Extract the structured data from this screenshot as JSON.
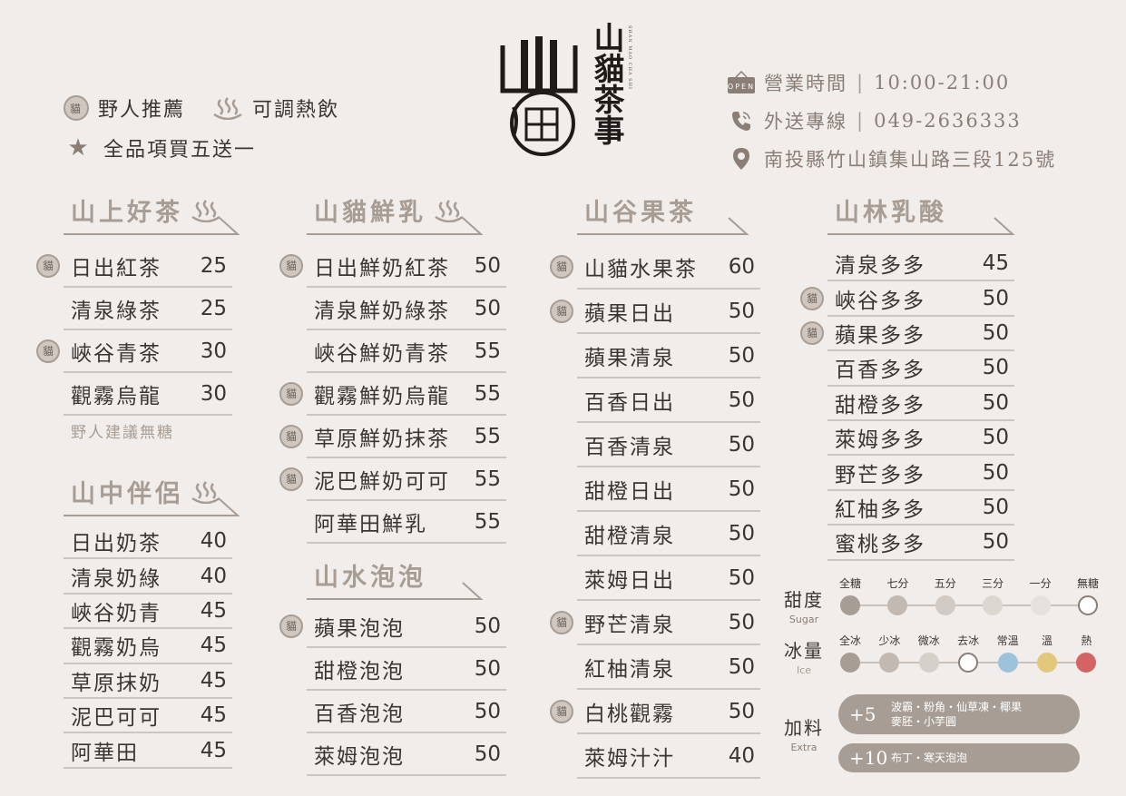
{
  "legend": {
    "recommend": "野人推薦",
    "hot": "可調熱飲",
    "promo": "全品項買五送一",
    "seal_char": "貓"
  },
  "logo": {
    "title": "山貓茶事",
    "seal_top": "山",
    "seal_bottom": "貓",
    "romanized": "SHAN MAO CHA SHI"
  },
  "info": {
    "hours_label": "營業時間",
    "hours_value": "10:00-21:00",
    "delivery_label": "外送專線",
    "delivery_value": "049-2636333",
    "address": "南投縣竹山鎮集山路三段125號",
    "open_sign": "OPEN"
  },
  "sections": {
    "mountain_tea": {
      "title": "山上好茶",
      "items": [
        {
          "name": "日出紅茶",
          "price": "25",
          "rec": true
        },
        {
          "name": "清泉綠茶",
          "price": "25",
          "rec": false
        },
        {
          "name": "峽谷青茶",
          "price": "30",
          "rec": true
        },
        {
          "name": "觀霧烏龍",
          "price": "30",
          "rec": false
        }
      ],
      "note": "野人建議無糖"
    },
    "companion": {
      "title": "山中伴侶",
      "items": [
        {
          "name": "日出奶茶",
          "price": "40"
        },
        {
          "name": "清泉奶綠",
          "price": "40"
        },
        {
          "name": "峽谷奶青",
          "price": "45"
        },
        {
          "name": "觀霧奶烏",
          "price": "45"
        },
        {
          "name": "草原抹奶",
          "price": "45"
        },
        {
          "name": "泥巴可可",
          "price": "45"
        },
        {
          "name": "阿華田",
          "price": "45"
        }
      ]
    },
    "fresh_milk": {
      "title": "山貓鮮乳",
      "items": [
        {
          "name": "日出鮮奶紅茶",
          "price": "50",
          "rec": true
        },
        {
          "name": "清泉鮮奶綠茶",
          "price": "50",
          "rec": false
        },
        {
          "name": "峽谷鮮奶青茶",
          "price": "55",
          "rec": false
        },
        {
          "name": "觀霧鮮奶烏龍",
          "price": "55",
          "rec": true
        },
        {
          "name": "草原鮮奶抹茶",
          "price": "55",
          "rec": true
        },
        {
          "name": "泥巴鮮奶可可",
          "price": "55",
          "rec": true
        },
        {
          "name": "阿華田鮮乳",
          "price": "55",
          "rec": false
        }
      ]
    },
    "bubbles": {
      "title": "山水泡泡",
      "items": [
        {
          "name": "蘋果泡泡",
          "price": "50",
          "rec": true
        },
        {
          "name": "甜橙泡泡",
          "price": "50",
          "rec": false
        },
        {
          "name": "百香泡泡",
          "price": "50",
          "rec": false
        },
        {
          "name": "萊姆泡泡",
          "price": "50",
          "rec": false
        }
      ]
    },
    "fruit_tea": {
      "title": "山谷果茶",
      "items": [
        {
          "name": "山貓水果茶",
          "price": "60",
          "rec": true
        },
        {
          "name": "蘋果日出",
          "price": "50",
          "rec": true
        },
        {
          "name": "蘋果清泉",
          "price": "50",
          "rec": false
        },
        {
          "name": "百香日出",
          "price": "50",
          "rec": false
        },
        {
          "name": "百香清泉",
          "price": "50",
          "rec": false
        },
        {
          "name": "甜橙日出",
          "price": "50",
          "rec": false
        },
        {
          "name": "甜橙清泉",
          "price": "50",
          "rec": false
        },
        {
          "name": "萊姆日出",
          "price": "50",
          "rec": false
        },
        {
          "name": "野芒清泉",
          "price": "50",
          "rec": true
        },
        {
          "name": "紅柚清泉",
          "price": "50",
          "rec": false
        },
        {
          "name": "白桃觀霧",
          "price": "50",
          "rec": true
        },
        {
          "name": "萊姆汁汁",
          "price": "40",
          "rec": false
        }
      ]
    },
    "yogurt": {
      "title": "山林乳酸",
      "items": [
        {
          "name": "清泉多多",
          "price": "45",
          "rec": false
        },
        {
          "name": "峽谷多多",
          "price": "50",
          "rec": true
        },
        {
          "name": "蘋果多多",
          "price": "50",
          "rec": true
        },
        {
          "name": "百香多多",
          "price": "50",
          "rec": false
        },
        {
          "name": "甜橙多多",
          "price": "50",
          "rec": false
        },
        {
          "name": "萊姆多多",
          "price": "50",
          "rec": false
        },
        {
          "name": "野芒多多",
          "price": "50",
          "rec": false
        },
        {
          "name": "紅柚多多",
          "price": "50",
          "rec": false
        },
        {
          "name": "蜜桃多多",
          "price": "50",
          "rec": false
        }
      ]
    }
  },
  "options": {
    "sugar": {
      "label": "甜度",
      "label_en": "Sugar",
      "levels": [
        {
          "name": "全糖",
          "color": "#a89d94"
        },
        {
          "name": "七分",
          "color": "#c2b9b2"
        },
        {
          "name": "五分",
          "color": "#d2cbc5"
        },
        {
          "name": "三分",
          "color": "#ddd7d2"
        },
        {
          "name": "一分",
          "color": "#e6e1dd"
        },
        {
          "name": "無糖",
          "color": "#ffffff"
        }
      ]
    },
    "ice": {
      "label": "冰量",
      "label_en": "Ice",
      "levels": [
        {
          "name": "全冰",
          "color": "#a89d94"
        },
        {
          "name": "少冰",
          "color": "#c2b9b2"
        },
        {
          "name": "微冰",
          "color": "#d6d0ca"
        },
        {
          "name": "去冰",
          "color": "#ffffff"
        },
        {
          "name": "常溫",
          "color": "#9cc3db"
        },
        {
          "name": "溫",
          "color": "#e2c87a"
        },
        {
          "name": "熱",
          "color": "#d46464"
        }
      ]
    },
    "extra": {
      "label": "加料",
      "label_en": "Extra",
      "tiers": [
        {
          "price": "+5",
          "line1": "波霸・粉角・仙草凍・椰果",
          "line2": "麥胚・小芋圓"
        },
        {
          "price": "+10",
          "line1": "布丁・寒天泡泡",
          "line2": ""
        }
      ]
    }
  },
  "colors": {
    "accent": "#a89d94",
    "text": "#3a3532",
    "background": "#f0edea"
  }
}
